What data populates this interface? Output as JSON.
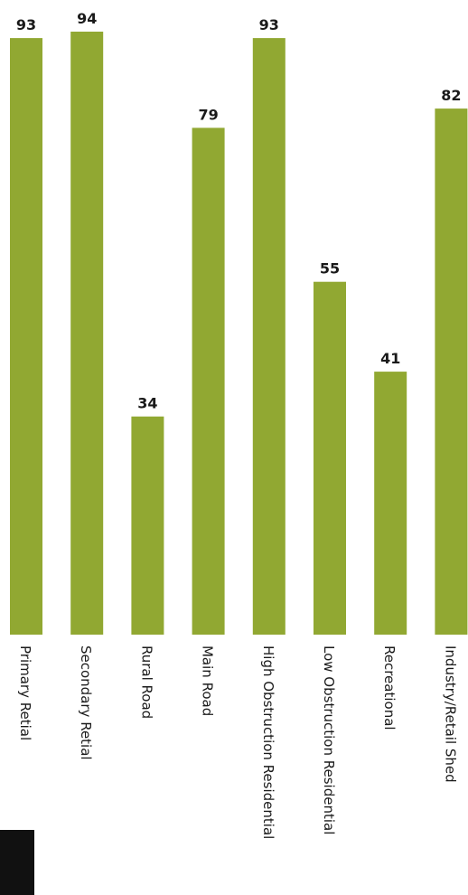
{
  "chart_data": {
    "type": "bar",
    "orientation": "vertical",
    "categories": [
      "Primary Retial",
      "Secondary Retial",
      "Rural Road",
      "Main Road",
      "High Obstruction Residential",
      "Low Obstruction Residential",
      "Recreational",
      "Industry/Retail Shed"
    ],
    "values": [
      93,
      94,
      34,
      79,
      93,
      55,
      41,
      82
    ],
    "title": "",
    "xlabel": "",
    "ylabel": "",
    "ylim": [
      0,
      100
    ],
    "grid": false,
    "legend": "none",
    "bar_color": "#91a832"
  }
}
